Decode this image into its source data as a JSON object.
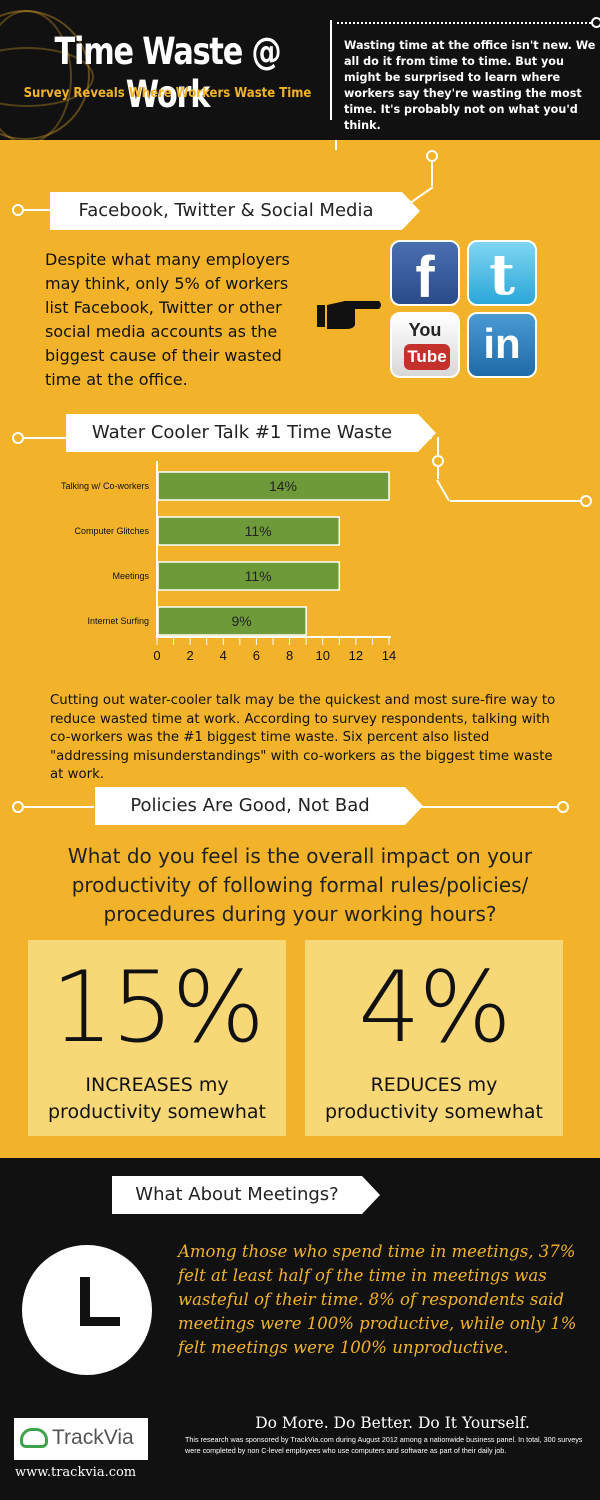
{
  "header": {
    "title": "Time Waste @ Work",
    "subtitle": "Survey Reveals Where Workers Waste Time",
    "intro": "Wasting time at the office isn't new. We all do it from time to time. But you might be surprised to learn where workers say they're wasting the most time. It's probably not on what you'd think."
  },
  "social": {
    "title": "Facebook, Twitter & Social Media",
    "body": "Despite what many employers may think, only 5% of workers list Facebook, Twitter or other social media accounts as the biggest cause of their wasted time at the office.",
    "icons": [
      "facebook-icon",
      "twitter-icon",
      "youtube-icon",
      "linkedin-icon"
    ],
    "fb_glyph": "f",
    "tw_glyph": "t",
    "yt_top": "You",
    "yt_bottom": "Tube",
    "li_glyph": "in"
  },
  "watercooler": {
    "title": "Water Cooler Talk #1 Time Waste",
    "body": "Cutting out water-cooler talk may be the quickest and most sure-fire way to reduce wasted time at work. According to survey respondents, talking with co-workers was the #1 biggest time waste. Six percent also listed \"addressing misunderstandings\" with co-workers as the biggest time waste at work."
  },
  "chart_data": {
    "type": "bar",
    "orientation": "horizontal",
    "categories": [
      "Talking w/ Co-workers",
      "Computer Glitches",
      "Meetings",
      "Internet Surfing"
    ],
    "values": [
      14,
      11,
      11,
      9
    ],
    "data_labels": [
      "14%",
      "11%",
      "11%",
      "9%"
    ],
    "ticks": [
      "0",
      "2",
      "4",
      "6",
      "8",
      "10",
      "12",
      "14"
    ],
    "xlim": [
      0,
      14
    ],
    "bar_color": "#6f9a3a",
    "grid": false
  },
  "policies": {
    "title": "Policies Are Good, Not Bad",
    "question": "What do you feel is the overall impact on your productivity of following formal rules/policies/ procedures during your working hours?",
    "boxes": [
      {
        "pct": "15%",
        "caption_line1": "INCREASES my",
        "caption_line2": "productivity somewhat"
      },
      {
        "pct": "4%",
        "caption_line1": "REDUCES my",
        "caption_line2": "productivity somewhat"
      }
    ]
  },
  "meetings": {
    "title": "What About Meetings?",
    "body": "Among those who spend time in meetings, 37% felt at least half of the time in meetings was wasteful of their time.  8% of respondents said meetings were 100% productive, while only 1% felt meetings were 100% unproductive."
  },
  "footer": {
    "logo": "TrackVia",
    "url": "www.trackvia.com",
    "tagline": "Do More. Do Better. Do It Yourself.",
    "fine_print": "This research was sponsored by TrackVia.com during August 2012 among a nationwide business panel. In total, 300 surveys were completed by non C-level employees who use computers and software as part of their daily job."
  },
  "colors": {
    "background": "#f2b32a",
    "dark": "#111111",
    "box": "#f8d777",
    "bar": "#6f9a3a"
  }
}
